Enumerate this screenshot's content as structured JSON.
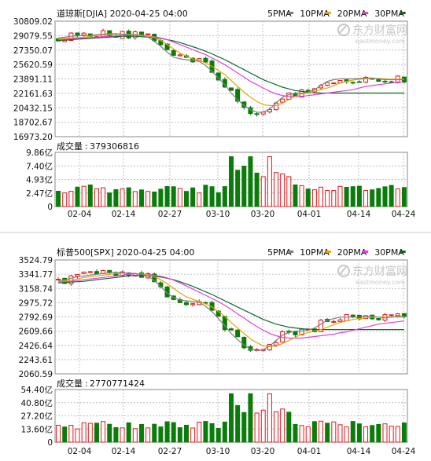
{
  "colors": {
    "up": "#e8141a",
    "down": "#0a7c0a",
    "ma5": "#808080",
    "ma10": "#e8a300",
    "ma20": "#e040e0",
    "ma30": "#0a6a2a",
    "grid": "#c0c0c0"
  },
  "legend": [
    {
      "label": "5PMA",
      "color": "#808080"
    },
    {
      "label": "10PMA",
      "color": "#e8a300"
    },
    {
      "label": "20PMA",
      "color": "#e040e0"
    },
    {
      "label": "30PMA",
      "color": "#0a6a2a"
    }
  ],
  "watermark": {
    "brand": "东方财富网",
    "url": "eastmoney.com",
    "icon": "eastmoney-logo-icon"
  },
  "chart_data": [
    {
      "type": "candlestick",
      "title": "道琼斯[DJIA] 2020-04-25 04:00",
      "x_labels": [
        "02-04",
        "02-14",
        "02-27",
        "03-10",
        "03-20",
        "04-01",
        "04-14",
        "04-24"
      ],
      "y_ticks": [
        "30809.02",
        "29079.55",
        "27350.07",
        "25620.59",
        "23891.11",
        "22161.63",
        "20432.15",
        "18702.67",
        "16973.20"
      ],
      "ylim": [
        16973.2,
        30809.02
      ],
      "volume_label": "成交量",
      "volume_value": "379306816",
      "volume_ticks": [
        "9.86亿",
        "7.40亿",
        "4.93亿",
        "2.47亿",
        "0"
      ],
      "volume_max": 9.86,
      "ma_levels": {
        "ma5": [
          28800,
          28900,
          29000,
          29050,
          29100,
          29100,
          29200,
          29250,
          29300,
          29300,
          29250,
          29200,
          29150,
          29100,
          28900,
          28400,
          27800,
          27100,
          26500,
          26300,
          26200,
          26100,
          26000,
          25500,
          24800,
          24000,
          23200,
          22200,
          21400,
          20700,
          20200,
          19900,
          19900,
          20300,
          21000,
          21700,
          22000,
          22200,
          22200,
          22300,
          22600,
          23100,
          23600,
          23800,
          23900,
          23900,
          23900,
          23950,
          24000,
          24000,
          23900,
          23800,
          23800,
          23800,
          23800
        ],
        "ma10": [
          28700,
          28750,
          28800,
          28850,
          28900,
          29000,
          29100,
          29150,
          29200,
          29250,
          29250,
          29250,
          29200,
          29150,
          29050,
          28850,
          28500,
          28000,
          27500,
          27000,
          26600,
          26300,
          26100,
          25800,
          25400,
          24900,
          24400,
          23700,
          23000,
          22300,
          21700,
          21200,
          20800,
          20700,
          20700,
          21000,
          21400,
          21800,
          22100,
          22200,
          22400,
          22600,
          22800,
          23100,
          23400,
          23600,
          23750,
          23850,
          23900,
          23950,
          23950,
          23900,
          23850,
          23850,
          23850
        ],
        "ma20": [
          28600,
          28650,
          28700,
          28750,
          28800,
          28850,
          28900,
          28950,
          29000,
          29050,
          29100,
          29150,
          29150,
          29100,
          29050,
          28950,
          28800,
          28600,
          28300,
          28000,
          27700,
          27400,
          27100,
          26800,
          26400,
          26000,
          25600,
          25100,
          24600,
          24100,
          23600,
          23200,
          22800,
          22400,
          22100,
          21900,
          21800,
          21800,
          21800,
          21900,
          22000,
          22100,
          22200,
          22300,
          22400,
          22500,
          22600,
          22800,
          23000,
          23100,
          23200,
          23300,
          23400,
          23450,
          23500
        ],
        "ma30": [
          28500,
          28550,
          28600,
          28650,
          28700,
          28750,
          28800,
          28850,
          28900,
          28950,
          29000,
          29000,
          29000,
          28950,
          28900,
          28850,
          28750,
          28600,
          28450,
          28250,
          28000,
          27750,
          27500,
          27200,
          26900,
          26550,
          26200,
          25800,
          25400,
          25000,
          24600,
          24200,
          23800,
          23500,
          23200,
          22900,
          22700,
          22500,
          22400,
          22300,
          22250,
          22200,
          22200,
          22200,
          22200,
          22200,
          22200,
          22200,
          22200,
          22200,
          22200,
          22200,
          22200,
          22200,
          22200
        ]
      }
    },
    {
      "type": "candlestick",
      "title": "标普500[SPX] 2020-04-25 04:00",
      "x_labels": [
        "02-04",
        "02-14",
        "02-27",
        "03-10",
        "03-20",
        "04-01",
        "04-14",
        "04-24"
      ],
      "y_ticks": [
        "3524.79",
        "3341.77",
        "3158.74",
        "2975.72",
        "2792.69",
        "2609.66",
        "2426.64",
        "2243.61",
        "2060.59"
      ],
      "ylim": [
        2060.59,
        3524.79
      ],
      "volume_label": "成交量",
      "volume_value": "2770771424",
      "volume_ticks": [
        "54.40亿",
        "40.80亿",
        "27.20亿",
        "13.60亿",
        "0"
      ],
      "volume_max": 54.4,
      "ma_levels": {
        "ma5": [
          3260,
          3270,
          3290,
          3310,
          3320,
          3330,
          3340,
          3350,
          3360,
          3365,
          3360,
          3355,
          3350,
          3340,
          3320,
          3260,
          3180,
          3100,
          3040,
          3010,
          3000,
          2990,
          2980,
          2930,
          2860,
          2770,
          2680,
          2580,
          2500,
          2430,
          2380,
          2360,
          2370,
          2420,
          2490,
          2560,
          2590,
          2610,
          2610,
          2620,
          2650,
          2700,
          2750,
          2770,
          2790,
          2790,
          2790,
          2790,
          2800,
          2800,
          2790,
          2780,
          2790,
          2800,
          2800
        ],
        "ma10": [
          3250,
          3255,
          3265,
          3280,
          3300,
          3310,
          3320,
          3330,
          3340,
          3350,
          3355,
          3355,
          3350,
          3345,
          3335,
          3310,
          3270,
          3220,
          3160,
          3100,
          3050,
          3020,
          2990,
          2960,
          2920,
          2860,
          2800,
          2720,
          2650,
          2580,
          2510,
          2460,
          2420,
          2410,
          2420,
          2450,
          2490,
          2530,
          2570,
          2590,
          2610,
          2630,
          2660,
          2690,
          2720,
          2740,
          2760,
          2770,
          2780,
          2790,
          2790,
          2790,
          2790,
          2790,
          2790
        ],
        "ma20": [
          3240,
          3245,
          3250,
          3260,
          3270,
          3280,
          3290,
          3300,
          3310,
          3320,
          3330,
          3340,
          3345,
          3345,
          3340,
          3330,
          3315,
          3295,
          3265,
          3230,
          3190,
          3150,
          3110,
          3070,
          3030,
          2990,
          2940,
          2890,
          2830,
          2780,
          2720,
          2670,
          2620,
          2580,
          2550,
          2530,
          2520,
          2520,
          2520,
          2530,
          2540,
          2550,
          2560,
          2570,
          2590,
          2600,
          2620,
          2640,
          2660,
          2680,
          2700,
          2710,
          2720,
          2730,
          2740
        ],
        "ma30": [
          3230,
          3235,
          3240,
          3245,
          3250,
          3260,
          3270,
          3280,
          3290,
          3300,
          3310,
          3320,
          3325,
          3325,
          3320,
          3315,
          3305,
          3290,
          3270,
          3245,
          3215,
          3185,
          3150,
          3115,
          3080,
          3040,
          3000,
          2960,
          2920,
          2880,
          2840,
          2800,
          2760,
          2730,
          2700,
          2680,
          2660,
          2650,
          2640,
          2635,
          2630,
          2630,
          2630,
          2630,
          2630,
          2630,
          2630,
          2630,
          2630,
          2630,
          2630,
          2630,
          2630,
          2630,
          2630
        ]
      }
    }
  ]
}
